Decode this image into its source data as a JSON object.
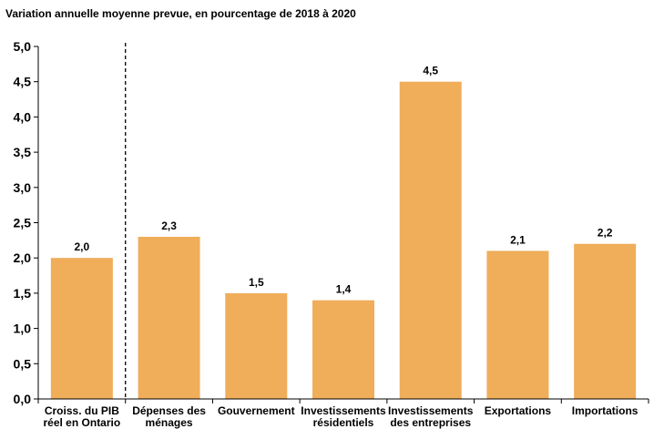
{
  "chart_data": {
    "type": "bar",
    "title": "Variation annuelle moyenne prevue, en pourcentage de 2018 à 2020",
    "xlabel": "",
    "ylabel": "",
    "ylim": [
      0,
      5
    ],
    "y_ticks": [
      0,
      0.5,
      1,
      1.5,
      2,
      2.5,
      3,
      3.5,
      4,
      4.5,
      5
    ],
    "y_tick_labels": [
      "0,0",
      "0,5",
      "1,0",
      "1,5",
      "2,0",
      "2,5",
      "3,0",
      "3,5",
      "4,0",
      "4,5",
      "5,0"
    ],
    "categories": [
      [
        "Croiss. du PIB",
        "réel en Ontario"
      ],
      [
        "Dépenses des",
        "ménages"
      ],
      [
        "Gouvernement"
      ],
      [
        "Investissements",
        "résidentiels"
      ],
      [
        "Investissements",
        "des entreprises"
      ],
      [
        "Exportations"
      ],
      [
        "Importations"
      ]
    ],
    "values": [
      2.0,
      2.3,
      1.5,
      1.4,
      4.5,
      2.1,
      2.2
    ],
    "value_labels": [
      "2,0",
      "2,3",
      "1,5",
      "1,4",
      "4,5",
      "2,1",
      "2,2"
    ],
    "bar_color": "#F0AD5A",
    "grid": false,
    "separator_after_category": 0
  }
}
